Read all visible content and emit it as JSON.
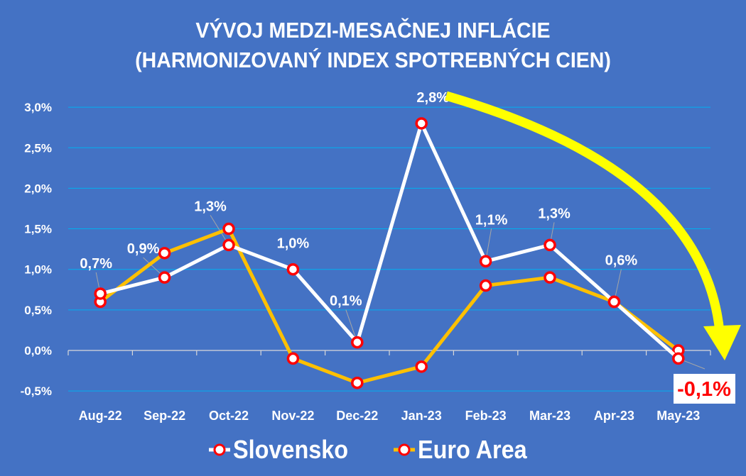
{
  "title": {
    "line1": "VÝVOJ MEDZI-MESAČNEJ INFLÁCIE",
    "line2": "(HARMONIZOVANÝ INDEX SPOTREBNÝCH CIEN)"
  },
  "colors": {
    "background": "#4472C4",
    "gridline": "#00B0F0",
    "slovensko_line": "#FFFFFF",
    "euro_area_line": "#FFC000",
    "marker_border": "#FF0000",
    "marker_fill": "#FFFFFF",
    "arrow": "#FFFF00",
    "callout_text": "#FF0000",
    "callout_bg": "#FFFFFF"
  },
  "legend": {
    "slovensko": "Slovensko",
    "euro_area": "Euro Area"
  },
  "callout": {
    "label": "-0,1%"
  },
  "chart_data": {
    "type": "line",
    "title": "VÝVOJ MEDZI-MESAČNEJ INFLÁCIE (HARMONIZOVANÝ INDEX SPOTREBNÝCH CIEN)",
    "xlabel": "",
    "ylabel": "",
    "categories": [
      "Aug-22",
      "Sep-22",
      "Oct-22",
      "Nov-22",
      "Dec-22",
      "Jan-23",
      "Feb-23",
      "Mar-23",
      "Apr-23",
      "May-23"
    ],
    "series": [
      {
        "name": "Slovensko",
        "values": [
          0.7,
          0.9,
          1.3,
          1.0,
          0.1,
          2.8,
          1.1,
          1.3,
          0.6,
          -0.1
        ],
        "data_labels": [
          "0,7%",
          "0,9%",
          "1,3%",
          "1,0%",
          "0,1%",
          "2,8%",
          "1,1%",
          "1,3%",
          "0,6%",
          "-0,1%"
        ]
      },
      {
        "name": "Euro Area",
        "values": [
          0.6,
          1.2,
          1.5,
          -0.1,
          -0.4,
          -0.2,
          0.8,
          0.9,
          0.6,
          0.0
        ]
      }
    ],
    "y_ticks": [
      "-0,5%",
      "0,0%",
      "0,5%",
      "1,0%",
      "1,5%",
      "2,0%",
      "2,5%",
      "3,0%"
    ],
    "ylim": [
      -0.5,
      3.0
    ],
    "grid": true,
    "legend_position": "bottom",
    "annotations": [
      "Yellow curved arrow from 2,8% peak down to May-23",
      "Highlighted label -0,1% for May-23"
    ]
  }
}
